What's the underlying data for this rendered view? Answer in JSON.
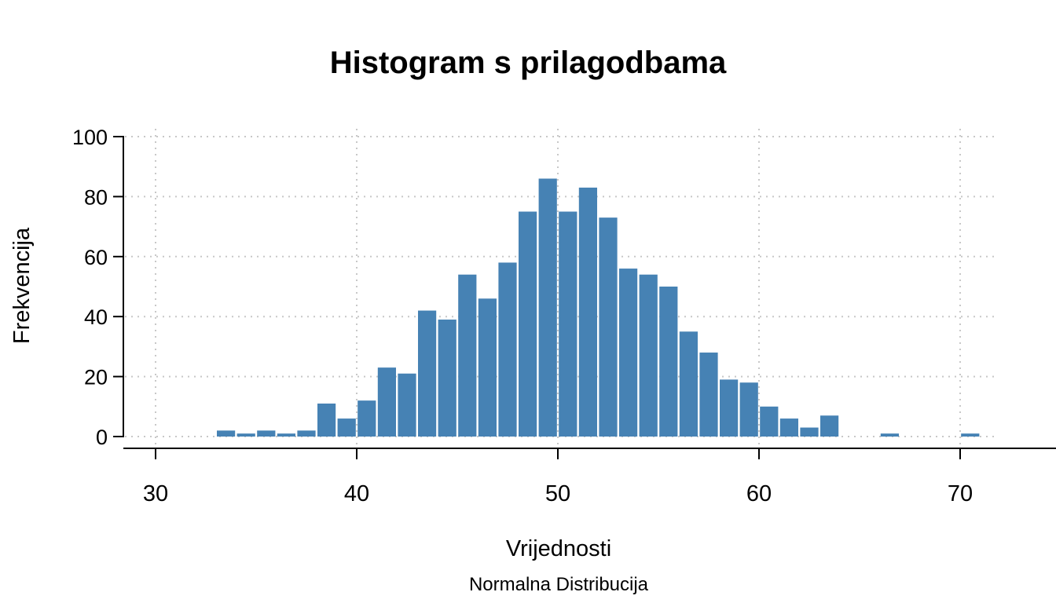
{
  "chart_data": {
    "type": "bar",
    "subtype": "histogram",
    "title": "Histogram s prilagodbama",
    "xlabel": "Vrijednosti",
    "x_sublabel": "Normalna Distribucija",
    "ylabel": "Frekvencija",
    "bin_width": 1,
    "bin_starts": [
      33,
      34,
      35,
      36,
      37,
      38,
      39,
      40,
      41,
      42,
      43,
      44,
      45,
      46,
      47,
      48,
      49,
      50,
      51,
      52,
      53,
      54,
      55,
      56,
      57,
      58,
      59,
      60,
      61,
      62,
      63,
      64,
      65,
      66,
      67,
      68,
      69,
      70
    ],
    "counts": [
      2,
      1,
      2,
      1,
      2,
      11,
      6,
      12,
      23,
      21,
      42,
      39,
      54,
      46,
      58,
      75,
      86,
      75,
      83,
      73,
      56,
      54,
      50,
      35,
      28,
      19,
      18,
      10,
      6,
      3,
      7,
      0,
      0,
      1,
      0,
      0,
      0,
      1
    ],
    "total_n": 1000,
    "x_ticks": [
      30,
      40,
      50,
      60,
      70
    ],
    "y_ticks": [
      0,
      20,
      40,
      60,
      80,
      100
    ],
    "xlim": [
      28.4,
      74.8
    ],
    "ylim": [
      0,
      100
    ],
    "grid": "dotted",
    "legend": "none",
    "bar_color": "#4682B4",
    "bar_gap_color": "#ffffff",
    "grid_color": "#C8C8C8",
    "axis_color": "#000000",
    "text_color": "#000000"
  }
}
